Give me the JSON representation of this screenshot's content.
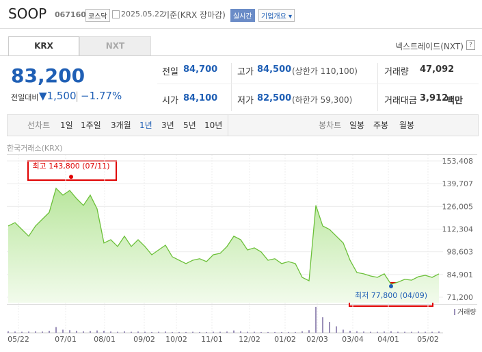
{
  "header": {
    "name": "SOOP",
    "code": "067160",
    "market": "코스닥",
    "date": "2025.05.22",
    "basis": "기준(KRX 장마감)",
    "realtime": "실시간",
    "overview": "기업개요"
  },
  "tabs": {
    "krx": "KRX",
    "nxt": "NXT",
    "nxt_link": "넥스트레이드(NXT)",
    "help": "?"
  },
  "quote": {
    "price": "83,200",
    "change_label": "전일대비",
    "change": "1,500",
    "change_pct": "−1.77%"
  },
  "stats": [
    {
      "label": "전일",
      "value": "84,700"
    },
    {
      "label": "고가",
      "value": "84,500",
      "note": "(상한가 110,100)"
    },
    {
      "label": "거래량",
      "value": "47,092"
    },
    {
      "label": "시가",
      "value": "84,100"
    },
    {
      "label": "저가",
      "value": "82,500",
      "note": "(하한가 59,300)"
    },
    {
      "label": "거래대금",
      "value": "3,912",
      "unit": "백만"
    }
  ],
  "periods": {
    "line_label": "선차트",
    "line_items": [
      "1일",
      "1주일",
      "3개월",
      "1년",
      "3년",
      "5년",
      "10년"
    ],
    "selected": 3,
    "candle_label": "봉차트",
    "candle_items": [
      "일봉",
      "주봉",
      "월봉"
    ]
  },
  "chart_data": {
    "type": "line",
    "source": "한국거래소(KRX)",
    "color": "#6cc03a",
    "values": [
      114200,
      116200,
      112100,
      108000,
      114200,
      118300,
      122400,
      136900,
      132800,
      135600,
      130700,
      126600,
      132800,
      124500,
      103900,
      105900,
      101800,
      108000,
      101800,
      105900,
      101800,
      96800,
      99700,
      102600,
      95600,
      93500,
      91500,
      93500,
      94400,
      92700,
      96800,
      97700,
      101800,
      108000,
      105900,
      99700,
      101000,
      98500,
      93500,
      94400,
      91500,
      92700,
      91500,
      83200,
      81100,
      126600,
      114200,
      112100,
      108000,
      103900,
      93500,
      86100,
      85300,
      84000,
      83200,
      85300,
      79000,
      80300,
      82000,
      81500,
      83600,
      84400,
      83200,
      85300
    ],
    "ylim": [
      71200,
      153408
    ],
    "yticks": [
      {
        "value": 71200,
        "label": "71,200"
      },
      {
        "value": 84901,
        "label": "84,901"
      },
      {
        "value": 98603,
        "label": "98,603"
      },
      {
        "value": 112304,
        "label": "112,304"
      },
      {
        "value": 126005,
        "label": "126,005"
      },
      {
        "value": 139707,
        "label": "139,707"
      },
      {
        "value": 153408,
        "label": "153,408"
      }
    ],
    "xlim": [
      0,
      63.6
    ],
    "xticks": [
      {
        "value": 1.5,
        "label": "05/22"
      },
      {
        "value": 8.4,
        "label": "07/01"
      },
      {
        "value": 14.1,
        "label": "08/01"
      },
      {
        "value": 19.9,
        "label": "09/02"
      },
      {
        "value": 24.6,
        "label": "10/02"
      },
      {
        "value": 29.8,
        "label": "11/01"
      },
      {
        "value": 35.3,
        "label": "12/02"
      },
      {
        "value": 40.5,
        "label": "01/02"
      },
      {
        "value": 45.2,
        "label": "02/03"
      },
      {
        "value": 50.4,
        "label": "03/04"
      },
      {
        "value": 55.6,
        "label": "04/01"
      },
      {
        "value": 61.4,
        "label": "05/02"
      }
    ],
    "annotations": [
      {
        "label": "최고 143,800 (07/11)",
        "value": 143800,
        "x": 9.2,
        "color": "#e00000"
      },
      {
        "label": "최저 77,800 (04/09)",
        "value": 77800,
        "x": 56,
        "color": "#1f5fb5"
      }
    ],
    "volume": {
      "name": "거래량",
      "color": "#9a8fb8",
      "ylim": [
        0,
        100
      ],
      "values": [
        6,
        5,
        4,
        5,
        6,
        5,
        8,
        22,
        12,
        10,
        8,
        6,
        7,
        9,
        8,
        5,
        4,
        6,
        4,
        5,
        4,
        3,
        4,
        5,
        3,
        3,
        3,
        4,
        3,
        3,
        4,
        4,
        5,
        9,
        6,
        4,
        4,
        3,
        3,
        3,
        3,
        3,
        3,
        6,
        10,
        100,
        60,
        42,
        25,
        12,
        8,
        6,
        5,
        4,
        4,
        5,
        6,
        4,
        4,
        4,
        5,
        4,
        4,
        5
      ]
    }
  }
}
